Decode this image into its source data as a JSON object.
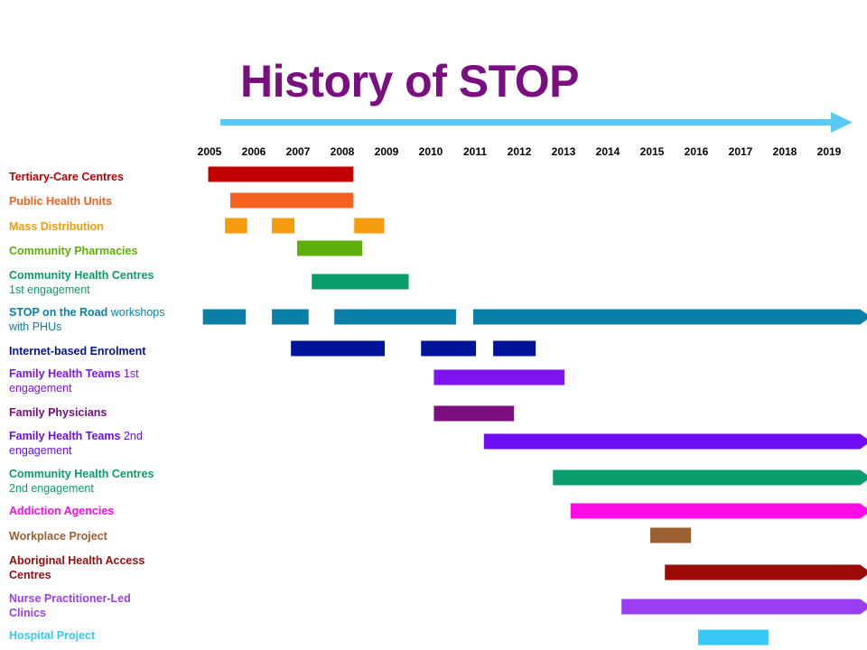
{
  "chart_data": {
    "type": "gantt",
    "title": "History of STOP",
    "years": [
      "2005",
      "2006",
      "2007",
      "2008",
      "2009",
      "2010",
      "2011",
      "2012",
      "2013",
      "2014",
      "2015",
      "2016",
      "2017",
      "2018",
      "2019"
    ],
    "rows": [
      {
        "label": "Tertiary-Care Centres",
        "sub": "",
        "color": "#c00000",
        "bars": [
          [
            2004.97,
            2008.25
          ]
        ]
      },
      {
        "label": "Public Health Units",
        "sub": "",
        "color": "#f5621f",
        "bars": [
          [
            2005.47,
            2008.25
          ]
        ]
      },
      {
        "label": "Mass Distribution",
        "sub": "",
        "color": "#f59c10",
        "bars": [
          [
            2005.35,
            2005.85
          ],
          [
            2006.41,
            2006.92
          ],
          [
            2008.27,
            2008.95
          ]
        ]
      },
      {
        "label": "Community Pharmacies",
        "sub": "",
        "color": "#5faf0c",
        "bars": [
          [
            2006.98,
            2008.45
          ]
        ]
      },
      {
        "label": "Community Health Centres",
        "sub": "1st engagement",
        "color": "#0a9c6c",
        "bars": [
          [
            2007.31,
            2009.5
          ]
        ]
      },
      {
        "label": "STOP on the Road",
        "sub": "workshops with PHUs",
        "color": "#0a7fa8",
        "bars": [
          [
            2004.85,
            2005.82
          ],
          [
            2006.41,
            2007.24
          ],
          [
            2007.82,
            2010.57
          ],
          [
            2010.96,
            2019.7
          ]
        ],
        "arrow": true
      },
      {
        "label": "Internet-based Enrolment",
        "sub": "",
        "color": "#001499",
        "bars": [
          [
            2006.84,
            2008.96
          ],
          [
            2009.78,
            2011.02
          ],
          [
            2011.41,
            2012.37
          ]
        ]
      },
      {
        "label": "Family Health Teams",
        "sub": "1st engagement",
        "color": "#7f12ee",
        "bars": [
          [
            2010.07,
            2013.02
          ]
        ]
      },
      {
        "label": "Family Physicians",
        "sub": "",
        "color": "#7b0e80",
        "bars": [
          [
            2010.07,
            2011.88
          ]
        ]
      },
      {
        "label": "Family Health Teams",
        "sub": "2nd engagement",
        "color": "#6e0cf2",
        "bars": [
          [
            2011.2,
            2019.7
          ]
        ],
        "arrow": true
      },
      {
        "label": "Community Health Centres",
        "sub": "2nd engagement",
        "color": "#0a9c6c",
        "bars": [
          [
            2012.76,
            2019.7
          ]
        ],
        "arrow": true
      },
      {
        "label": "Addiction Agencies",
        "sub": "",
        "color": "#ff0be6",
        "bars": [
          [
            2013.16,
            2019.7
          ]
        ],
        "arrow": true
      },
      {
        "label": "Workplace Project",
        "sub": "",
        "color": "#9a6032",
        "bars": [
          [
            2014.96,
            2015.88
          ]
        ]
      },
      {
        "label": "Aboriginal Health Access Centres",
        "sub": "",
        "color": "#9c0a0a",
        "bars": [
          [
            2015.29,
            2019.7
          ]
        ],
        "arrow": true
      },
      {
        "label": "Nurse Practitioner-Led Clinics",
        "sub": "",
        "color": "#9b3df0",
        "bars": [
          [
            2014.31,
            2019.7
          ]
        ],
        "arrow": true
      },
      {
        "label": "Hospital Project",
        "sub": "",
        "color": "#37c9f5",
        "bars": [
          [
            2016.04,
            2017.63
          ]
        ]
      }
    ]
  },
  "colors": {
    "title": "#7a0f80",
    "timeline_arrow": "#5cc8f5"
  }
}
